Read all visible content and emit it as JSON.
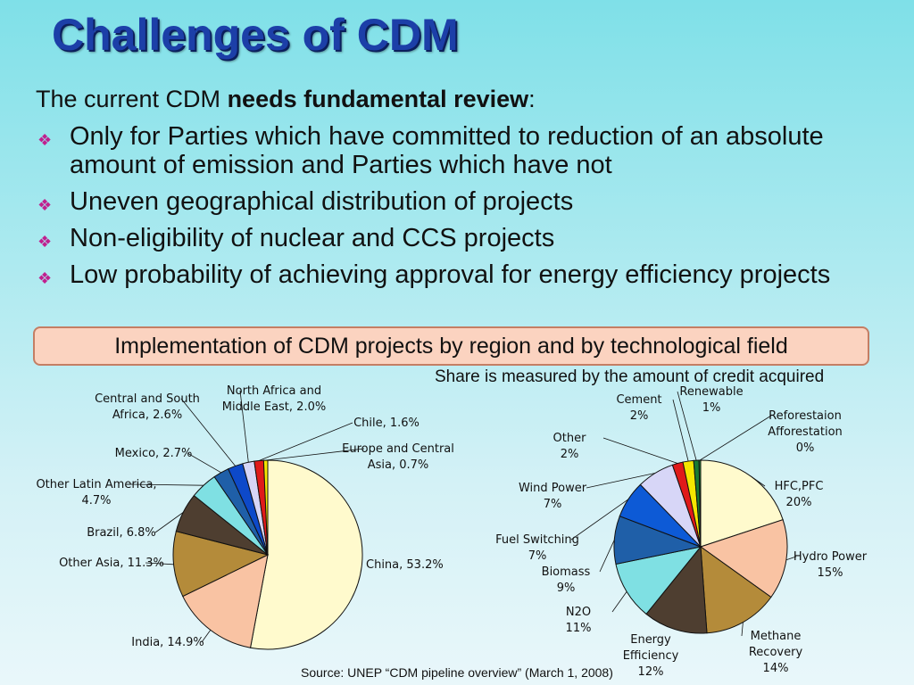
{
  "slide": {
    "title": "Challenges of CDM",
    "intro_prefix": "The current CDM ",
    "intro_bold": "needs fundamental review",
    "intro_suffix": ":",
    "bullets": [
      "Only for Parties which have committed to reduction of an absolute amount of emission and Parties which have not",
      "Uneven geographical distribution of projects",
      "Non-eligibility of nuclear and CCS projects",
      "Low probability of achieving approval for energy efficiency projects"
    ],
    "banner": "Implementation of CDM projects by region and by technological field",
    "note": "Share is measured by the amount of credit acquired",
    "source": "Source: UNEP “CDM pipeline overview” (March 1, 2008)",
    "bullet_icon": "diamond-bullet-icon"
  },
  "chart_data": [
    {
      "type": "pie",
      "title": "",
      "slices": [
        {
          "label": "China, 53.2%",
          "value": 53.2,
          "color": "#fffacd",
          "label_color": "#e00000"
        },
        {
          "label": "India, 14.9%",
          "value": 14.9,
          "color": "#f9c3a3",
          "label_color": "#e00000"
        },
        {
          "label": "Other Asia, 11.3%",
          "value": 11.3,
          "color": "#b48b3a",
          "label_color": "#111111"
        },
        {
          "label": "Brazil, 6.8%",
          "value": 6.8,
          "color": "#4e3e30",
          "label_color": "#e00000"
        },
        {
          "label": "Other Latin America, 4.7%",
          "value": 4.7,
          "color": "#7fe0e3",
          "label_color": "#111111"
        },
        {
          "label": "Mexico, 2.7%",
          "value": 2.7,
          "color": "#1f5fa8",
          "label_color": "#111111"
        },
        {
          "label": "Central and South Africa, 2.6%",
          "value": 2.6,
          "color": "#0d49c9",
          "label_color": "#111111"
        },
        {
          "label": "North Africa and Middle East, 2.0%",
          "value": 2.0,
          "color": "#d7d6f7",
          "label_color": "#111111"
        },
        {
          "label": "Chile, 1.6%",
          "value": 1.6,
          "color": "#e01a1a",
          "label_color": "#111111"
        },
        {
          "label": "Europe and Central Asia, 0.7%",
          "value": 0.7,
          "color": "#f5e600",
          "label_color": "#111111"
        }
      ]
    },
    {
      "type": "pie",
      "title": "",
      "slices": [
        {
          "label": "HFC,PFC 20%",
          "value": 20,
          "color": "#fffacd"
        },
        {
          "label": "Hydro Power 15%",
          "value": 15,
          "color": "#f9c3a3"
        },
        {
          "label": "Methane Recovery 14%",
          "value": 14,
          "color": "#b48b3a"
        },
        {
          "label": "Energy Efficiency 12%",
          "value": 12,
          "color": "#4e3e30"
        },
        {
          "label": "N2O 11%",
          "value": 11,
          "color": "#7fe0e3"
        },
        {
          "label": "Biomass 9%",
          "value": 9,
          "color": "#1f5fa8"
        },
        {
          "label": "Fuel Switching 7%",
          "value": 7,
          "color": "#0d5ad6"
        },
        {
          "label": "Wind Power 7%",
          "value": 7,
          "color": "#d7d6f7"
        },
        {
          "label": "Other 2%",
          "value": 2,
          "color": "#e01a1a"
        },
        {
          "label": "Cement 2%",
          "value": 2,
          "color": "#f5e600"
        },
        {
          "label": "Renewable 1%",
          "value": 1,
          "color": "#1a7a32"
        },
        {
          "label": "Reforestaion Afforestation 0%",
          "value": 0.3,
          "color": "#2e8f40"
        }
      ]
    }
  ]
}
